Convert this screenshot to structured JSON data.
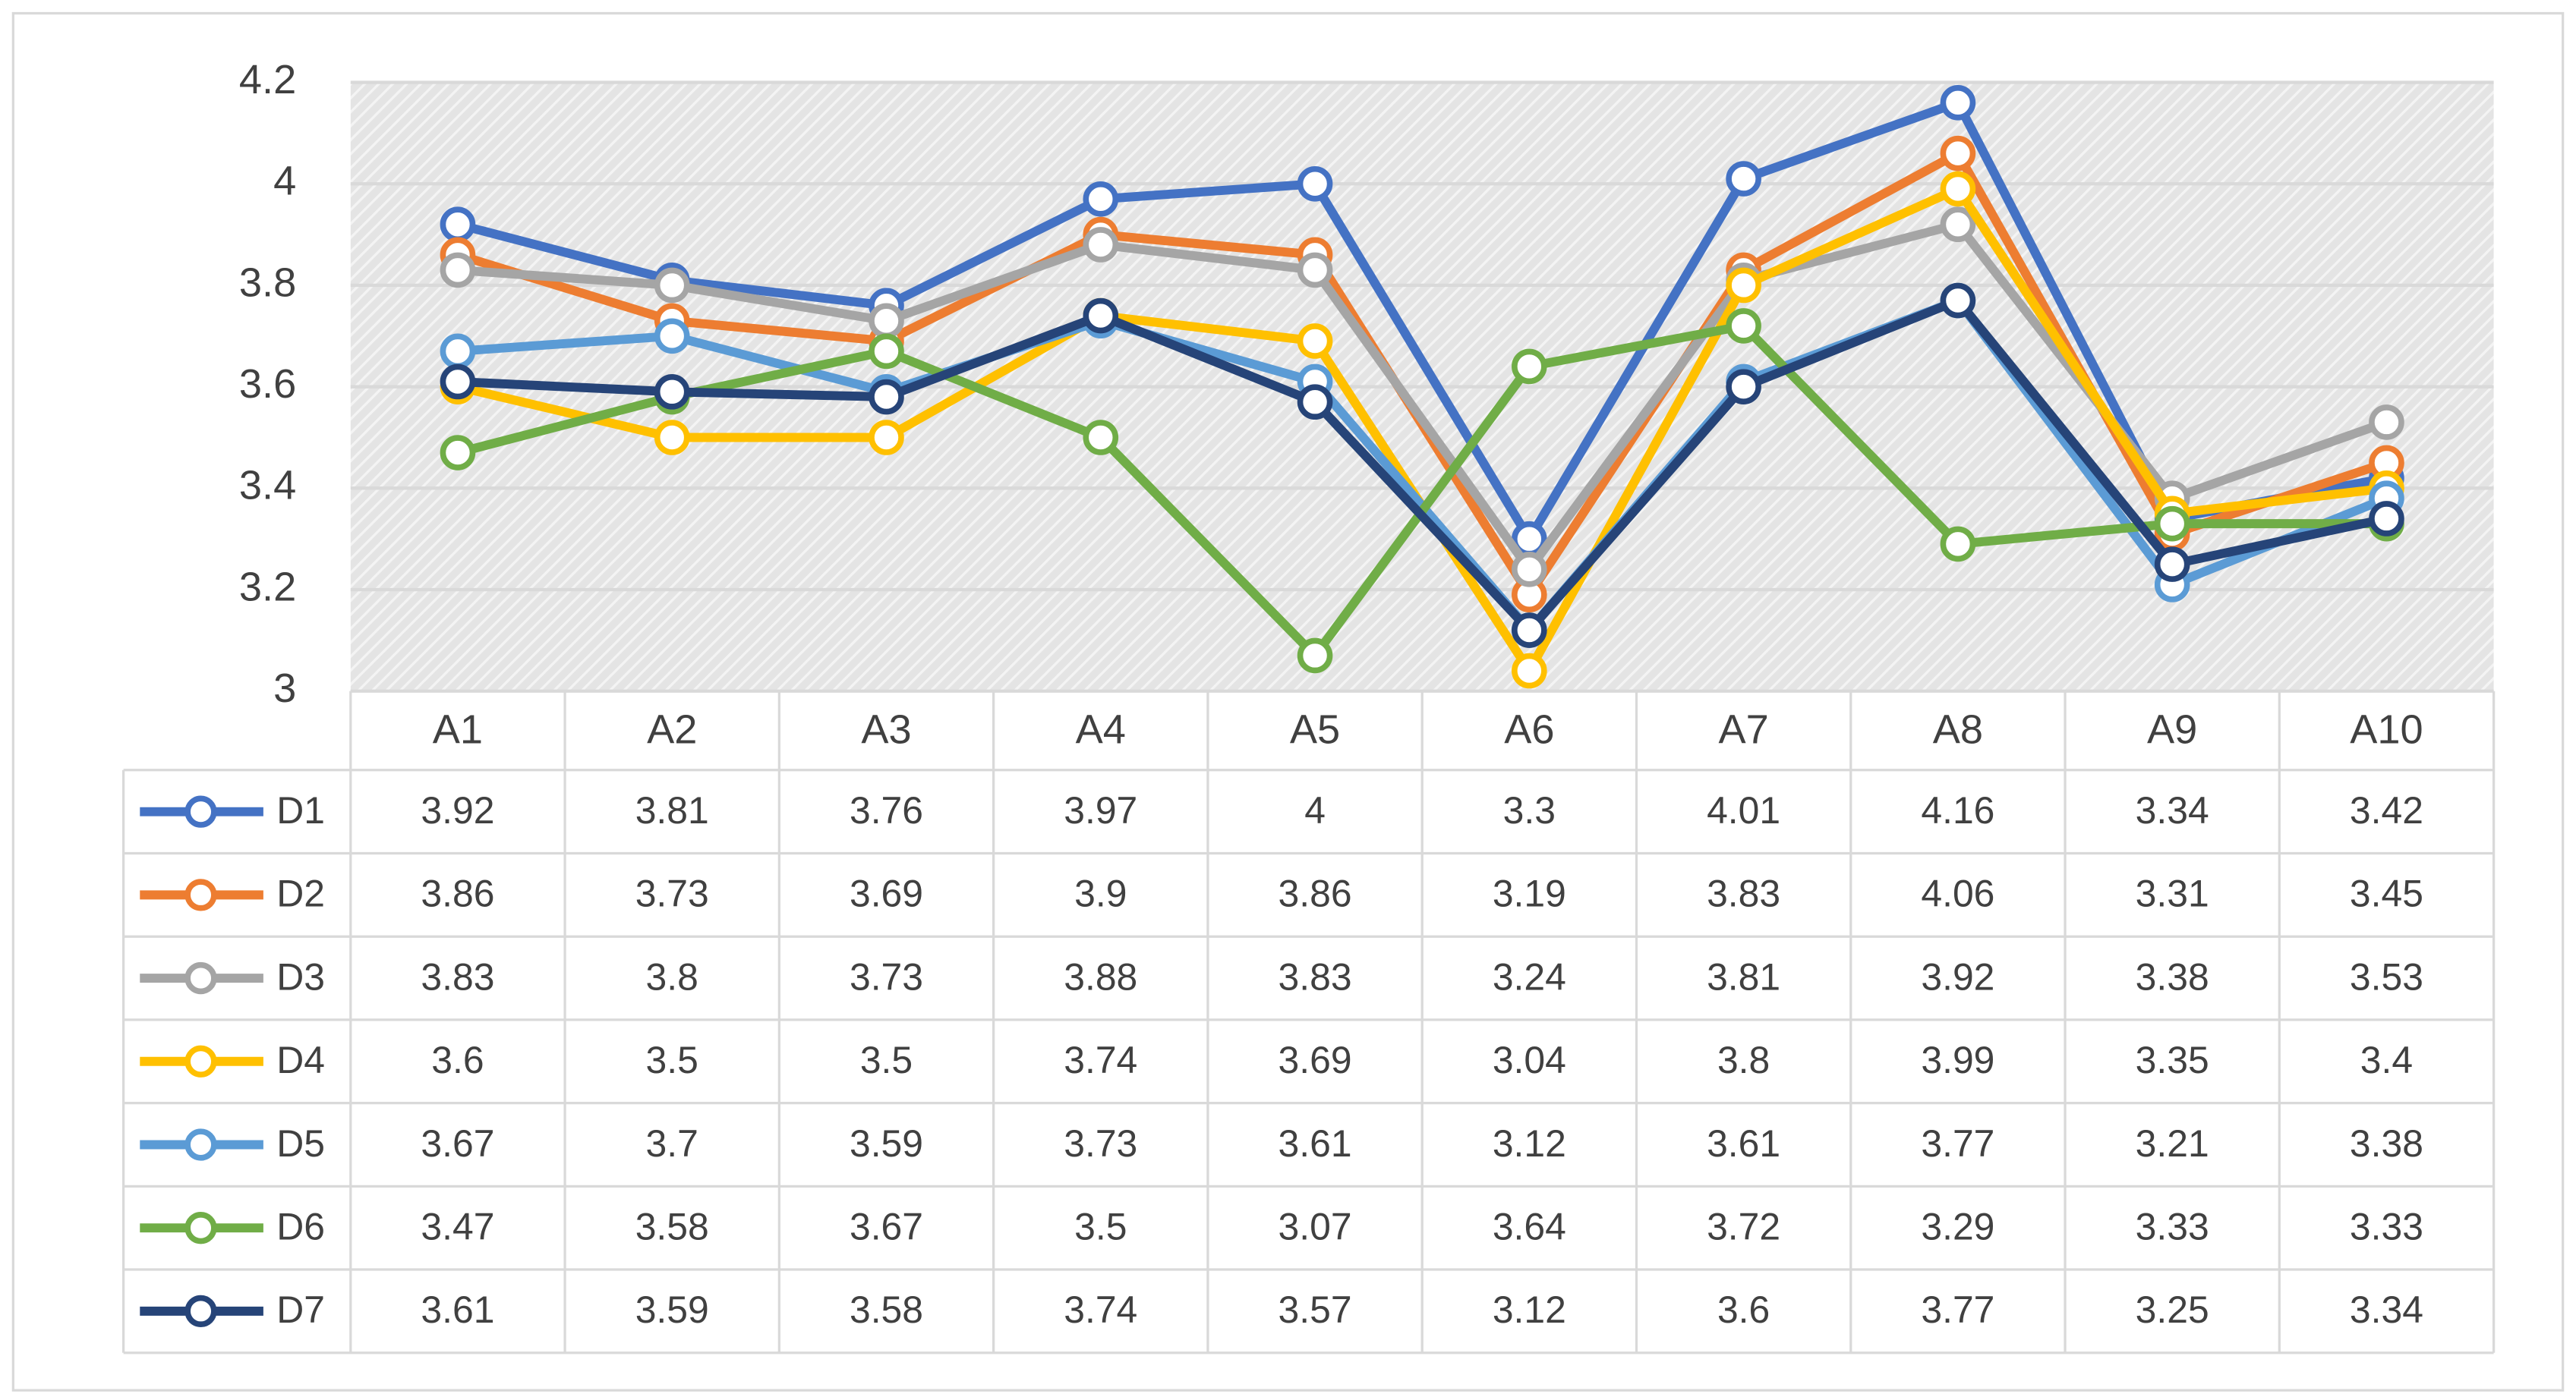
{
  "chart_data": {
    "type": "line",
    "categories": [
      "A1",
      "A2",
      "A3",
      "A4",
      "A5",
      "A6",
      "A7",
      "A8",
      "A9",
      "A10"
    ],
    "series": [
      {
        "name": "D1",
        "color": "#4472c4",
        "values": [
          3.92,
          3.81,
          3.76,
          3.97,
          4,
          3.3,
          4.01,
          4.16,
          3.34,
          3.42
        ]
      },
      {
        "name": "D2",
        "color": "#ed7d31",
        "values": [
          3.86,
          3.73,
          3.69,
          3.9,
          3.86,
          3.19,
          3.83,
          4.06,
          3.31,
          3.45
        ]
      },
      {
        "name": "D3",
        "color": "#a5a5a5",
        "values": [
          3.83,
          3.8,
          3.73,
          3.88,
          3.83,
          3.24,
          3.81,
          3.92,
          3.38,
          3.53
        ]
      },
      {
        "name": "D4",
        "color": "#ffc000",
        "values": [
          3.6,
          3.5,
          3.5,
          3.74,
          3.69,
          3.04,
          3.8,
          3.99,
          3.35,
          3.4
        ]
      },
      {
        "name": "D5",
        "color": "#5b9bd5",
        "values": [
          3.67,
          3.7,
          3.59,
          3.73,
          3.61,
          3.12,
          3.61,
          3.77,
          3.21,
          3.38
        ]
      },
      {
        "name": "D6",
        "color": "#70ad47",
        "values": [
          3.47,
          3.58,
          3.67,
          3.5,
          3.07,
          3.64,
          3.72,
          3.29,
          3.33,
          3.33
        ]
      },
      {
        "name": "D7",
        "color": "#264478",
        "values": [
          3.61,
          3.59,
          3.58,
          3.74,
          3.57,
          3.12,
          3.6,
          3.77,
          3.25,
          3.34
        ]
      }
    ],
    "ylim": [
      3,
      4.2
    ],
    "yticks": [
      3,
      3.2,
      3.4,
      3.6,
      3.8,
      4,
      4.2
    ],
    "grid": true,
    "data_table": true
  }
}
